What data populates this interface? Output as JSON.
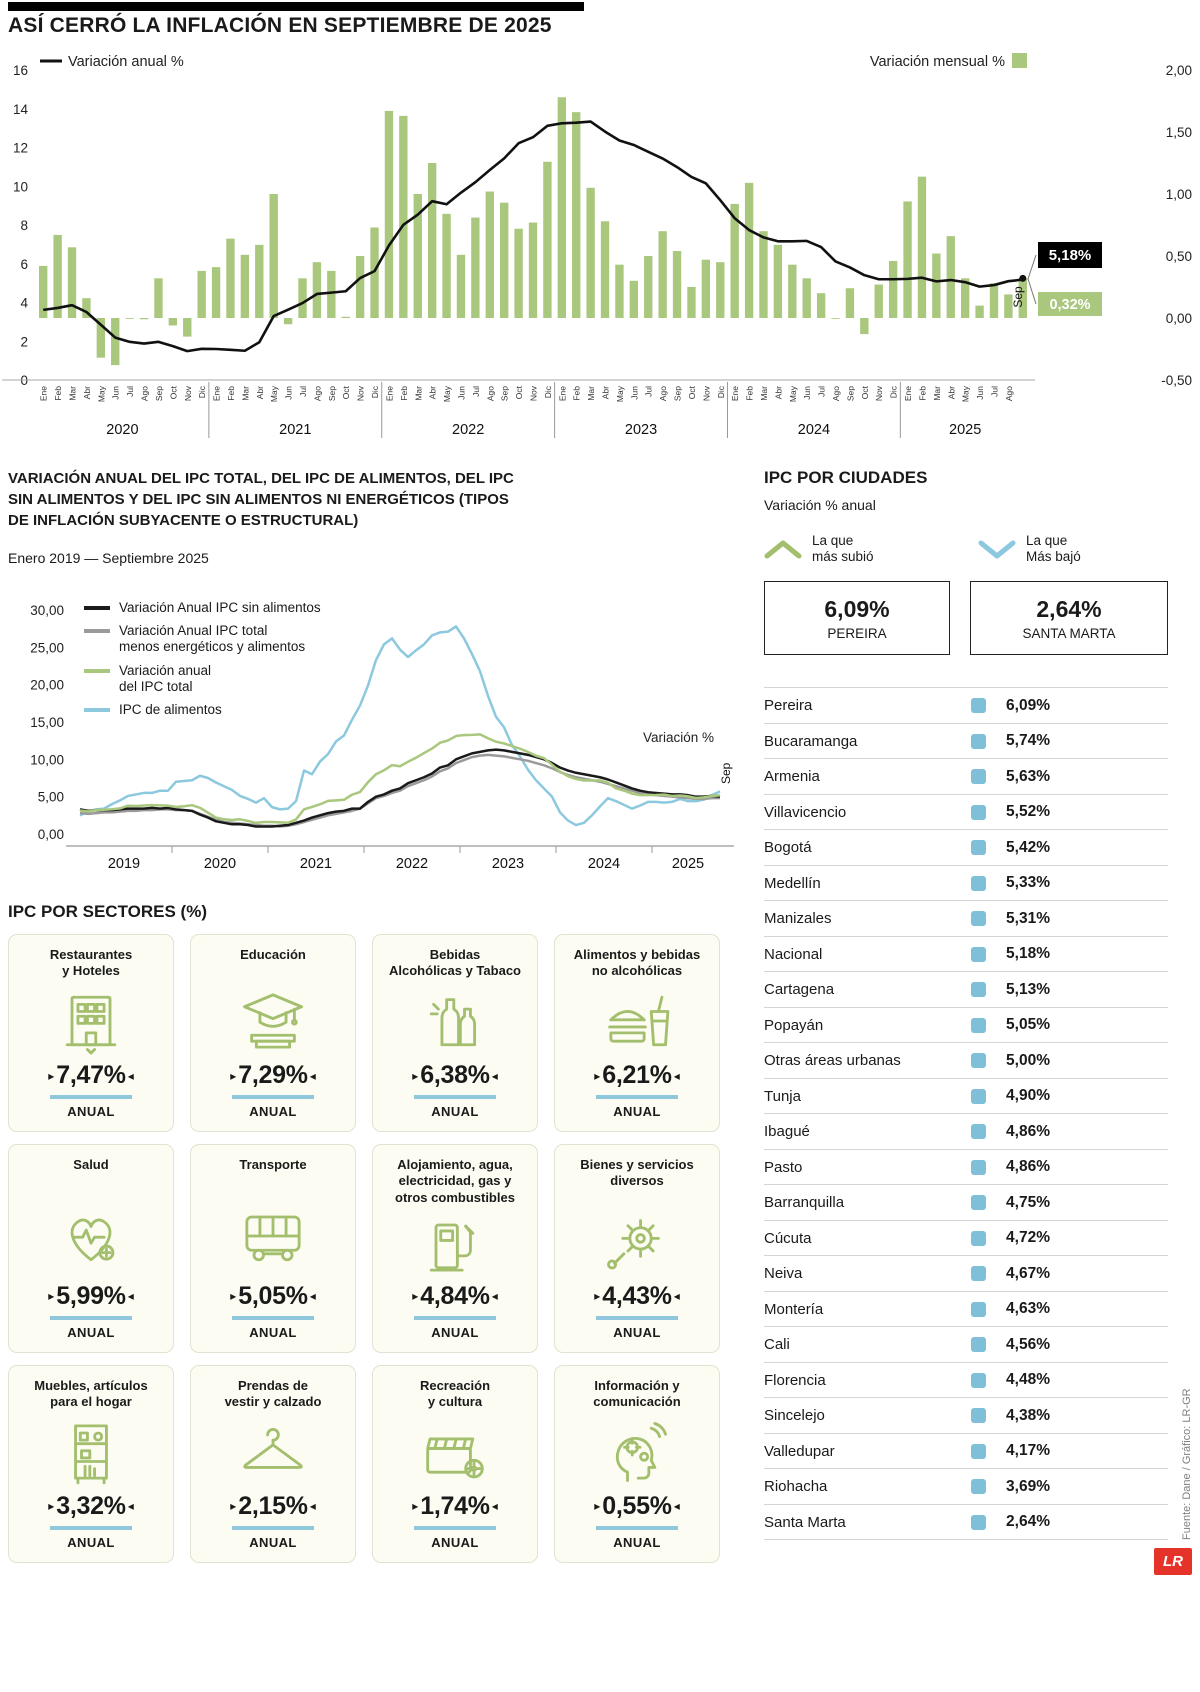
{
  "header": {
    "title": "ASÍ CERRÓ LA INFLACIÓN EN SEPTIEMBRE DE 2025"
  },
  "colors": {
    "green": "#a9c77d",
    "icon_green": "#a3bf6d",
    "blue": "#8cc8de",
    "blue_square": "#7fc0d8",
    "underline_blue": "#8fc7dc",
    "gray": "#9a9a9a",
    "black": "#1a1a1a",
    "red": "#e63329"
  },
  "chart_data": [
    {
      "id": "inflacion-mensual-anual",
      "type": "bar+line",
      "legend_line": "Variación anual %",
      "legend_bar": "Variación mensual %",
      "line_axis": {
        "min": 0,
        "max": 16,
        "step": 2
      },
      "bar_axis": {
        "min": -0.5,
        "max": 2.0,
        "step": 0.5
      },
      "years": [
        {
          "year": "2020",
          "months": 12
        },
        {
          "year": "2021",
          "months": 12
        },
        {
          "year": "2022",
          "months": 12
        },
        {
          "year": "2023",
          "months": 12
        },
        {
          "year": "2024",
          "months": 12
        },
        {
          "year": "2025",
          "months": 9
        }
      ],
      "month_labels": [
        "Ene",
        "Feb",
        "Mar",
        "Abr",
        "May",
        "Jun",
        "Jul",
        "Ago",
        "Sep",
        "Oct",
        "Nov",
        "Dic",
        "Ene",
        "Feb",
        "Mar",
        "Abr",
        "May",
        "Jun",
        "Jul",
        "Ago",
        "Sep",
        "Oct",
        "Nov",
        "Dic",
        "Ene",
        "Feb",
        "Mar",
        "Abr",
        "May",
        "Jun",
        "Jul",
        "Ago",
        "Sep",
        "Oct",
        "Nov",
        "Dic",
        "Ene",
        "Feb",
        "Mar",
        "Abr",
        "May",
        "Jun",
        "Jul",
        "Ago",
        "Sep",
        "Oct",
        "Nov",
        "Dic",
        "Ene",
        "Feb",
        "Mar",
        "Abr",
        "May",
        "Jun",
        "Jul",
        "Ago",
        "Sep",
        "Oct",
        "Nov",
        "Dic",
        "Ene",
        "Feb",
        "Mar",
        "Abr",
        "May",
        "Jun",
        "Jul",
        "Ago",
        ""
      ],
      "line_values": [
        3.62,
        3.72,
        3.86,
        3.51,
        2.85,
        2.19,
        1.97,
        1.88,
        1.97,
        1.75,
        1.49,
        1.61,
        1.6,
        1.56,
        1.51,
        1.95,
        3.3,
        3.63,
        3.97,
        4.44,
        4.51,
        4.58,
        5.26,
        5.62,
        6.94,
        8.01,
        8.53,
        9.23,
        9.07,
        9.67,
        10.21,
        10.84,
        11.44,
        12.22,
        12.53,
        13.12,
        13.25,
        13.28,
        13.34,
        12.82,
        12.36,
        12.13,
        11.78,
        11.43,
        10.99,
        10.48,
        10.15,
        9.28,
        8.35,
        7.74,
        7.36,
        7.16,
        7.16,
        7.18,
        6.86,
        6.12,
        5.81,
        5.41,
        5.2,
        5.2,
        5.22,
        5.28,
        5.09,
        5.16,
        5.05,
        4.82,
        4.9,
        5.1,
        5.18
      ],
      "bar_values": [
        0.42,
        0.67,
        0.57,
        0.16,
        -0.32,
        -0.38,
        0.0,
        -0.01,
        0.32,
        -0.06,
        -0.15,
        0.38,
        0.41,
        0.64,
        0.51,
        0.59,
        1.0,
        -0.05,
        0.32,
        0.45,
        0.38,
        0.01,
        0.5,
        0.73,
        1.67,
        1.63,
        1.0,
        1.25,
        0.84,
        0.51,
        0.81,
        1.02,
        0.93,
        0.72,
        0.77,
        1.26,
        1.78,
        1.66,
        1.05,
        0.78,
        0.43,
        0.3,
        0.5,
        0.7,
        0.54,
        0.25,
        0.47,
        0.45,
        0.92,
        1.09,
        0.7,
        0.59,
        0.43,
        0.32,
        0.2,
        0.0,
        0.24,
        -0.13,
        0.27,
        0.46,
        0.94,
        1.14,
        0.52,
        0.66,
        0.32,
        0.1,
        0.28,
        0.19,
        0.32
      ],
      "callout_line": {
        "label": "5,18%",
        "color": "#000000"
      },
      "callout_bar": {
        "label": "0,32%",
        "color": "#a9c77d"
      },
      "last_month_label": "Sep"
    },
    {
      "id": "ipc-componentes",
      "type": "line",
      "title_lines": [
        "VARIACIÓN ANUAL DEL IPC TOTAL, DEL IPC DE ALIMENTOS, DEL IPC",
        "SIN ALIMENTOS Y DEL IPC SIN ALIMENTOS NI ENERGÉTICOS (TIPOS",
        "DE INFLACIÓN SUBYACENTE O ESTRUCTURAL)"
      ],
      "subtitle": "Enero 2019 — Septiembre 2025",
      "ylabel": "Variación %",
      "last_label": "Sep",
      "y_axis": {
        "min": 0,
        "max": 30,
        "step": 5
      },
      "year_groups": [
        {
          "year": "2019",
          "months": 12
        },
        {
          "year": "2020",
          "months": 12
        },
        {
          "year": "2021",
          "months": 12
        },
        {
          "year": "2022",
          "months": 12
        },
        {
          "year": "2023",
          "months": 12
        },
        {
          "year": "2024",
          "months": 12
        },
        {
          "year": "2025",
          "months": 9
        }
      ],
      "series": [
        {
          "name": "Variación Anual IPC sin alimentos",
          "label_lines": [
            "Variación Anual IPC sin alimentos"
          ],
          "color": "#1a1a1a",
          "values": [
            3.3,
            3.1,
            3.2,
            3.2,
            3.2,
            3.3,
            3.4,
            3.4,
            3.4,
            3.5,
            3.4,
            3.5,
            3.3,
            3.2,
            3.1,
            2.6,
            2.2,
            1.7,
            1.5,
            1.3,
            1.3,
            1.2,
            1.0,
            1.0,
            1.0,
            1.1,
            1.2,
            1.5,
            1.8,
            2.2,
            2.5,
            2.8,
            3.0,
            3.1,
            3.4,
            3.4,
            4.3,
            5.0,
            5.3,
            5.8,
            6.1,
            6.8,
            7.2,
            7.6,
            8.1,
            8.9,
            9.2,
            10.0,
            10.4,
            10.8,
            11.0,
            11.2,
            11.3,
            11.2,
            11.0,
            10.8,
            10.6,
            10.3,
            10.0,
            9.5,
            8.9,
            8.5,
            8.2,
            8.0,
            7.8,
            7.6,
            7.3,
            6.9,
            6.5,
            6.1,
            5.8,
            5.6,
            5.5,
            5.4,
            5.3,
            5.3,
            5.2,
            5.0,
            5.0,
            5.1,
            5.0
          ]
        },
        {
          "name": "Variación Anual IPC total menos energéticos y alimentos",
          "label_lines": [
            "Variación Anual IPC total",
            "menos energéticos y alimentos"
          ],
          "color": "#9a9a9a",
          "values": [
            2.8,
            2.7,
            2.8,
            2.9,
            2.9,
            3.0,
            3.1,
            3.1,
            3.2,
            3.2,
            3.3,
            3.3,
            3.2,
            3.2,
            3.1,
            2.7,
            2.3,
            1.9,
            1.6,
            1.5,
            1.4,
            1.3,
            1.2,
            1.1,
            1.1,
            1.0,
            1.1,
            1.3,
            1.6,
            1.9,
            2.2,
            2.5,
            2.7,
            2.9,
            3.1,
            3.4,
            4.1,
            4.8,
            5.1,
            5.5,
            5.8,
            6.4,
            6.8,
            7.2,
            7.7,
            8.4,
            8.8,
            9.5,
            9.9,
            10.3,
            10.5,
            10.6,
            10.5,
            10.4,
            10.2,
            10.0,
            9.8,
            9.5,
            9.2,
            8.8,
            8.3,
            7.9,
            7.6,
            7.4,
            7.2,
            7.0,
            6.7,
            6.4,
            6.1,
            5.8,
            5.5,
            5.3,
            5.2,
            5.1,
            5.0,
            4.9,
            4.8,
            4.7,
            4.7,
            4.8,
            4.8
          ]
        },
        {
          "name": "Variación anual del IPC total",
          "label_lines": [
            "Variación anual",
            "del IPC total"
          ],
          "color": "#a9c77d",
          "values": [
            3.15,
            3.01,
            3.21,
            3.25,
            3.31,
            3.43,
            3.79,
            3.75,
            3.82,
            3.86,
            3.84,
            3.8,
            3.62,
            3.72,
            3.86,
            3.51,
            2.85,
            2.19,
            1.97,
            1.88,
            1.97,
            1.75,
            1.49,
            1.61,
            1.6,
            1.56,
            1.51,
            1.95,
            3.3,
            3.63,
            3.97,
            4.44,
            4.51,
            4.58,
            5.26,
            5.62,
            6.94,
            8.01,
            8.53,
            9.23,
            9.07,
            9.67,
            10.21,
            10.84,
            11.44,
            12.22,
            12.53,
            13.12,
            13.25,
            13.28,
            13.34,
            12.82,
            12.36,
            12.13,
            11.78,
            11.43,
            10.99,
            10.48,
            10.15,
            9.28,
            8.35,
            7.74,
            7.36,
            7.16,
            7.16,
            7.18,
            6.86,
            6.12,
            5.81,
            5.41,
            5.2,
            5.2,
            5.22,
            5.28,
            5.09,
            5.16,
            5.05,
            4.82,
            4.9,
            5.1,
            5.18
          ]
        },
        {
          "name": "IPC de alimentos",
          "label_lines": [
            "IPC de alimentos"
          ],
          "color": "#8cc8de",
          "values": [
            2.5,
            3.0,
            3.3,
            3.4,
            4.0,
            4.5,
            5.1,
            5.3,
            5.5,
            5.5,
            5.8,
            5.8,
            7.0,
            7.1,
            7.2,
            7.8,
            7.5,
            6.9,
            6.4,
            5.9,
            5.1,
            4.7,
            4.2,
            4.8,
            3.6,
            3.3,
            3.4,
            4.4,
            8.5,
            8.0,
            9.7,
            10.7,
            12.4,
            13.2,
            15.3,
            17.2,
            19.9,
            23.3,
            25.4,
            26.2,
            24.7,
            23.7,
            24.6,
            25.4,
            26.6,
            27.0,
            27.1,
            27.8,
            26.2,
            24.1,
            21.8,
            18.5,
            15.7,
            14.3,
            11.9,
            10.4,
            8.6,
            7.2,
            6.1,
            5.0,
            2.9,
            1.8,
            1.2,
            1.5,
            2.5,
            3.7,
            4.8,
            4.4,
            3.9,
            3.4,
            3.8,
            4.3,
            4.3,
            4.2,
            4.3,
            4.7,
            4.4,
            4.4,
            4.6,
            5.2,
            5.7
          ]
        }
      ]
    }
  ],
  "cities": {
    "title": "IPC POR CIUDADES",
    "subtitle": "Variación % anual",
    "up_legend": {
      "line1": "La que",
      "line2": "más subió"
    },
    "down_legend": {
      "line1": "La que",
      "line2": "Más bajó"
    },
    "highest": {
      "value": "6,09%",
      "name": "PEREIRA"
    },
    "lowest": {
      "value": "2,64%",
      "name": "SANTA MARTA"
    },
    "rows": [
      {
        "name": "Pereira",
        "value": "6,09%"
      },
      {
        "name": "Bucaramanga",
        "value": "5,74%"
      },
      {
        "name": "Armenia",
        "value": "5,63%"
      },
      {
        "name": "Villavicencio",
        "value": "5,52%"
      },
      {
        "name": "Bogotá",
        "value": "5,42%"
      },
      {
        "name": "Medellín",
        "value": "5,33%"
      },
      {
        "name": "Manizales",
        "value": "5,31%"
      },
      {
        "name": "Nacional",
        "value": "5,18%"
      },
      {
        "name": "Cartagena",
        "value": "5,13%"
      },
      {
        "name": "Popayán",
        "value": "5,05%"
      },
      {
        "name": "Otras áreas urbanas",
        "value": "5,00%"
      },
      {
        "name": "Tunja",
        "value": "4,90%"
      },
      {
        "name": "Ibagué",
        "value": "4,86%"
      },
      {
        "name": "Pasto",
        "value": "4,86%"
      },
      {
        "name": "Barranquilla",
        "value": "4,75%"
      },
      {
        "name": "Cúcuta",
        "value": "4,72%"
      },
      {
        "name": "Neiva",
        "value": "4,67%"
      },
      {
        "name": "Montería",
        "value": "4,63%"
      },
      {
        "name": "Cali",
        "value": "4,56%"
      },
      {
        "name": "Florencia",
        "value": "4,48%"
      },
      {
        "name": "Sincelejo",
        "value": "4,38%"
      },
      {
        "name": "Valledupar",
        "value": "4,17%"
      },
      {
        "name": "Riohacha",
        "value": "3,69%"
      },
      {
        "name": "Santa Marta",
        "value": "2,64%"
      }
    ]
  },
  "sectors": {
    "title": "IPC POR SECTORES (%)",
    "period_label": "ANUAL",
    "cards": [
      {
        "title_lines": [
          "Restaurantes",
          "y Hoteles"
        ],
        "icon": "hotel-building-icon",
        "value": "7,47%"
      },
      {
        "title_lines": [
          "Educación"
        ],
        "icon": "graduation-cap-icon",
        "value": "7,29%"
      },
      {
        "title_lines": [
          "Bebidas",
          "Alcohólicas y Tabaco"
        ],
        "icon": "bottles-icon",
        "value": "6,38%"
      },
      {
        "title_lines": [
          "Alimentos y bebidas",
          "no alcohólicas"
        ],
        "icon": "fastfood-icon",
        "value": "6,21%"
      },
      {
        "title_lines": [
          "Salud"
        ],
        "icon": "heart-health-icon",
        "value": "5,99%"
      },
      {
        "title_lines": [
          "Transporte"
        ],
        "icon": "bus-icon",
        "value": "5,05%"
      },
      {
        "title_lines": [
          "Alojamiento, agua,",
          "electricidad, gas y",
          "otros combustibles"
        ],
        "icon": "fuel-pump-icon",
        "value": "4,84%"
      },
      {
        "title_lines": [
          "Bienes y servicios",
          "diversos"
        ],
        "icon": "gear-services-icon",
        "value": "4,43%"
      },
      {
        "title_lines": [
          "Muebles, artículos",
          "para el hogar"
        ],
        "icon": "furniture-icon",
        "value": "3,32%"
      },
      {
        "title_lines": [
          "Prendas de",
          "vestir y calzado"
        ],
        "icon": "hanger-icon",
        "value": "2,15%"
      },
      {
        "title_lines": [
          "Recreación",
          "y cultura"
        ],
        "icon": "clapperboard-icon",
        "value": "1,74%"
      },
      {
        "title_lines": [
          "Información y",
          "comunicación"
        ],
        "icon": "mind-communication-icon",
        "value": "0,55%"
      }
    ]
  },
  "footer": {
    "source": "Fuente: Dane / Gráfico: LR-GR",
    "logo": "LR"
  }
}
